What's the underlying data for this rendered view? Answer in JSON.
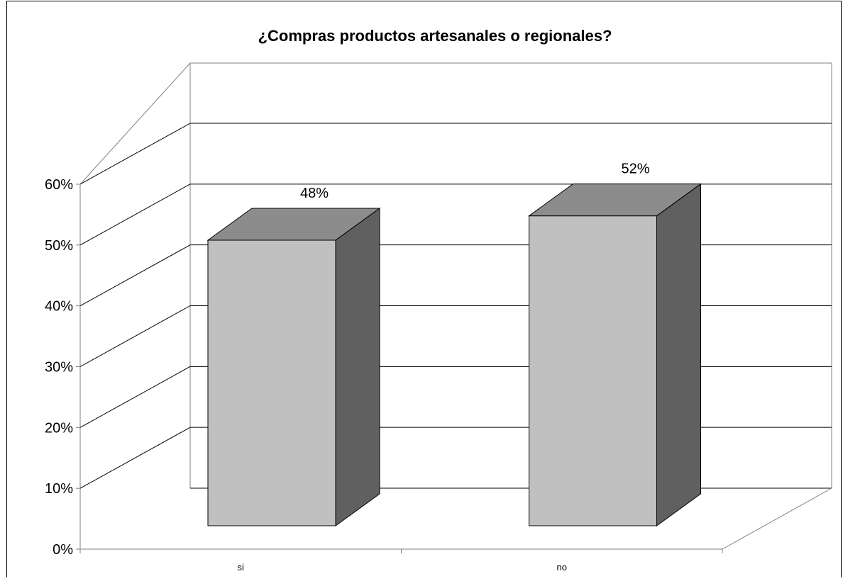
{
  "chart_data": {
    "type": "bar",
    "title": "¿Compras productos artesanales o regionales?",
    "categories": [
      "si",
      "no"
    ],
    "values": [
      0.48,
      0.52
    ],
    "data_labels": [
      "48%",
      "52%"
    ],
    "ylim": [
      0,
      0.6
    ],
    "yticks": [
      0,
      0.1,
      0.2,
      0.3,
      0.4,
      0.5,
      0.6
    ],
    "ytick_labels": [
      "0%",
      "10%",
      "20%",
      "30%",
      "40%",
      "50%",
      "60%"
    ],
    "grid": true,
    "legend": "none",
    "style": "3d",
    "colors": {
      "front": "#c0c0c0",
      "top": "#8c8c8c",
      "side": "#606060",
      "grid": "#000000",
      "axis": "#808080"
    }
  }
}
